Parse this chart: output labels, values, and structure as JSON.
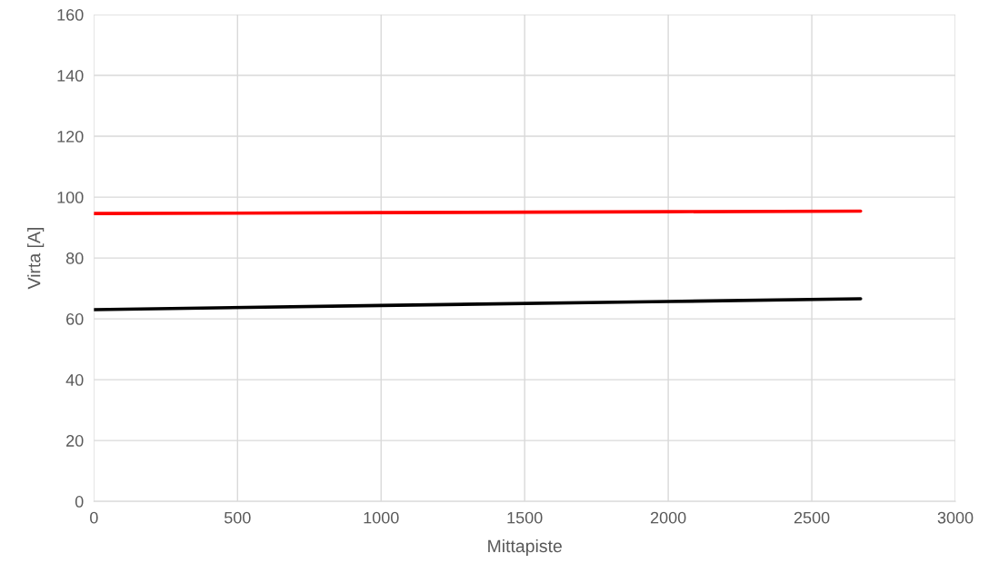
{
  "chart_data": {
    "type": "line",
    "xlabel": "Mittapiste",
    "ylabel": "Virta [A]",
    "series": [
      {
        "color": "#ff0000",
        "x": [
          0,
          1000,
          2000,
          2670
        ],
        "values": [
          94.6,
          94.9,
          95.2,
          95.4
        ]
      },
      {
        "color": "#000000",
        "x": [
          0,
          1000,
          2000,
          2670
        ],
        "values": [
          63.0,
          64.4,
          65.7,
          66.6
        ]
      }
    ],
    "xlim": [
      0,
      3000
    ],
    "xticks": [
      0,
      500,
      1000,
      1500,
      2000,
      2500,
      3000
    ],
    "ylim": [
      0,
      160
    ],
    "yticks": [
      0,
      20,
      40,
      60,
      80,
      100,
      120,
      140,
      160
    ],
    "grid": true,
    "marker": "none",
    "line_style": "solid"
  }
}
